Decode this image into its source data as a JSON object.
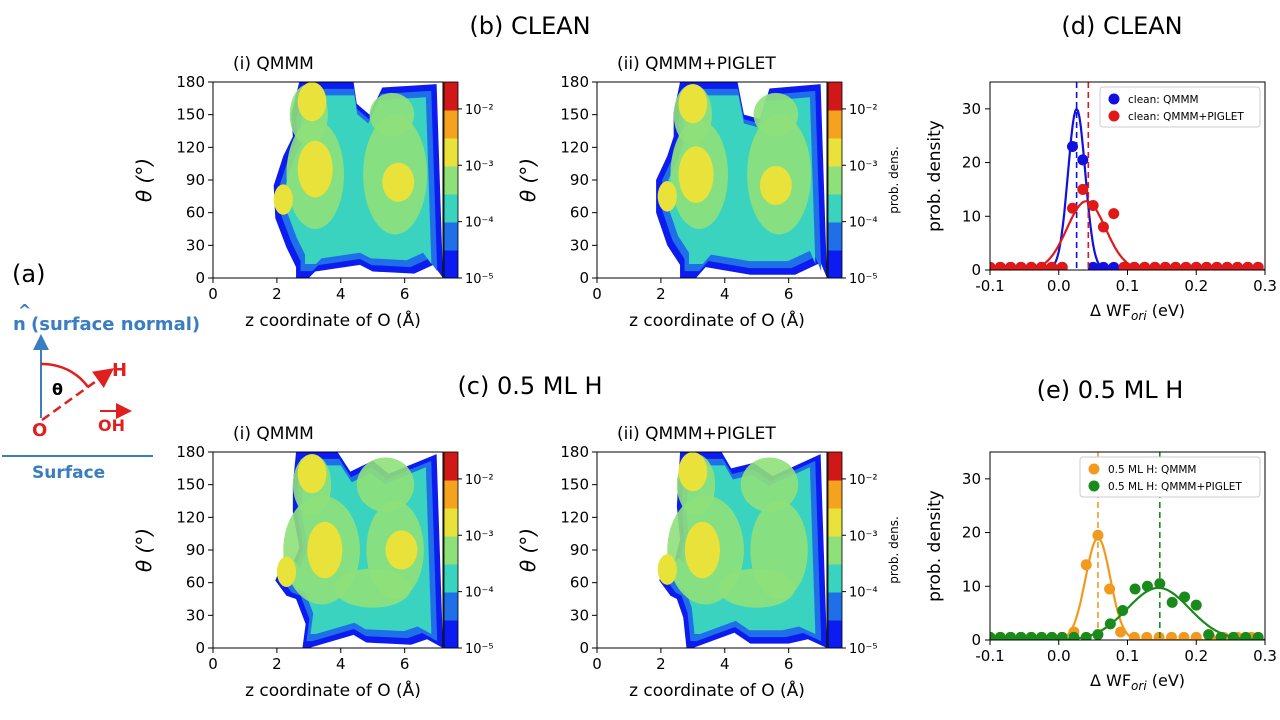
{
  "panel_labels": {
    "a": "(a)",
    "b": "(b) CLEAN",
    "c": "(c) 0.5 ML H",
    "d": "(d) CLEAN",
    "e": "(e) 0.5 ML H"
  },
  "schematic": {
    "normal_hat": "^",
    "normal_n": "n",
    "normal_label": "(surface normal)",
    "theta": "θ",
    "h": "H",
    "o": "O",
    "oh": "OH",
    "surface": "Surface"
  },
  "colors": {
    "clean_qmmm": "#1010e0",
    "clean_piglet": "#e01818",
    "h_qmmm": "#f29a1f",
    "h_piglet": "#1a8a1a",
    "schematic_blue": "#3a7dc0",
    "schematic_red": "#e02020",
    "colorbar": [
      "#0c1cf0",
      "#1f6fe8",
      "#39d3c0",
      "#8fe07a",
      "#e8e23a",
      "#f5a31f",
      "#d01818"
    ]
  },
  "chart_data": [
    {
      "type": "heatmap",
      "id": "b-i",
      "title": "(i) QMMM",
      "xlabel": "z coordinate of O (Å)",
      "ylabel": "θ (°)",
      "xlim": [
        0,
        7.2
      ],
      "ylim": [
        0,
        180
      ],
      "xticks": [
        "0",
        "2",
        "4",
        "6"
      ],
      "yticks": [
        "0",
        "30",
        "60",
        "90",
        "120",
        "150",
        "180"
      ],
      "colorbar": {
        "scale": "log",
        "range": [
          1e-05,
          0.03
        ],
        "ticks": [
          "10⁻⁵",
          "10⁻⁴",
          "10⁻³",
          "10⁻²"
        ],
        "label": ""
      },
      "hotspots": [
        {
          "x": 3.1,
          "y": 162,
          "level": "10⁻³"
        },
        {
          "x": 3.2,
          "y": 100,
          "level": "10⁻³"
        },
        {
          "x": 2.2,
          "y": 72,
          "level": "10⁻³"
        },
        {
          "x": 5.8,
          "y": 88,
          "level": "10⁻³"
        }
      ]
    },
    {
      "type": "heatmap",
      "id": "b-ii",
      "title": "(ii) QMMM+PIGLET",
      "xlabel": "z coordinate of O (Å)",
      "ylabel": "θ (°)",
      "xlim": [
        0,
        7.2
      ],
      "ylim": [
        0,
        180
      ],
      "xticks": [
        "0",
        "2",
        "4",
        "6"
      ],
      "yticks": [
        "0",
        "30",
        "60",
        "90",
        "120",
        "150",
        "180"
      ],
      "colorbar": {
        "scale": "log",
        "range": [
          1e-05,
          0.03
        ],
        "ticks": [
          "10⁻⁵",
          "10⁻⁴",
          "10⁻³",
          "10⁻²"
        ],
        "label": "prob. dens."
      },
      "hotspots": [
        {
          "x": 3.0,
          "y": 160,
          "level": "10⁻³"
        },
        {
          "x": 3.1,
          "y": 95,
          "level": "10⁻³"
        },
        {
          "x": 2.2,
          "y": 75,
          "level": "10⁻³"
        },
        {
          "x": 5.6,
          "y": 85,
          "level": "10⁻³"
        }
      ]
    },
    {
      "type": "heatmap",
      "id": "c-i",
      "title": "(i) QMMM",
      "xlabel": "z coordinate of O (Å)",
      "ylabel": "θ (°)",
      "xlim": [
        0,
        7.2
      ],
      "ylim": [
        0,
        180
      ],
      "xticks": [
        "0",
        "2",
        "4",
        "6"
      ],
      "yticks": [
        "0",
        "30",
        "60",
        "90",
        "120",
        "150",
        "180"
      ],
      "colorbar": {
        "scale": "log",
        "range": [
          1e-05,
          0.03
        ],
        "ticks": [
          "10⁻⁵",
          "10⁻⁴",
          "10⁻³",
          "10⁻²"
        ],
        "label": ""
      },
      "hotspots": [
        {
          "x": 3.1,
          "y": 160,
          "level": "10⁻³"
        },
        {
          "x": 3.5,
          "y": 90,
          "level": "10⁻³"
        },
        {
          "x": 2.3,
          "y": 70,
          "level": "10⁻³"
        },
        {
          "x": 5.9,
          "y": 90,
          "level": "10⁻³"
        }
      ]
    },
    {
      "type": "heatmap",
      "id": "c-ii",
      "title": "(ii) QMMM+PIGLET",
      "xlabel": "z coordinate of O (Å)",
      "ylabel": "θ (°)",
      "xlim": [
        0,
        7.2
      ],
      "ylim": [
        0,
        180
      ],
      "xticks": [
        "0",
        "2",
        "4",
        "6"
      ],
      "yticks": [
        "0",
        "30",
        "60",
        "90",
        "120",
        "150",
        "180"
      ],
      "colorbar": {
        "scale": "log",
        "range": [
          1e-05,
          0.03
        ],
        "ticks": [
          "10⁻⁵",
          "10⁻⁴",
          "10⁻³",
          "10⁻²"
        ],
        "label": "prob. dens."
      },
      "hotspots": [
        {
          "x": 3.0,
          "y": 162,
          "level": "10⁻³"
        },
        {
          "x": 3.3,
          "y": 90,
          "level": "10⁻³"
        },
        {
          "x": 2.2,
          "y": 72,
          "level": "10⁻³"
        }
      ]
    },
    {
      "type": "scatter",
      "id": "d",
      "xlabel": "Δ WF",
      "xlabel_sub": "ori",
      "xlabel_unit": " (eV)",
      "ylabel": "prob. density",
      "xlim": [
        -0.1,
        0.3
      ],
      "ylim": [
        0,
        35
      ],
      "xticks": [
        "-0.1",
        "0.0",
        "0.1",
        "0.2",
        "0.3"
      ],
      "yticks": [
        "0",
        "10",
        "20",
        "30"
      ],
      "legend": "top-right",
      "series": [
        {
          "name": "clean: QMMM",
          "color": "#1010e0",
          "mean": 0.026,
          "points": [
            [
              -0.1,
              0.5
            ],
            [
              -0.085,
              0.5
            ],
            [
              -0.07,
              0.5
            ],
            [
              -0.055,
              0.5
            ],
            [
              -0.04,
              0.5
            ],
            [
              -0.025,
              0.5
            ],
            [
              -0.01,
              0.5
            ],
            [
              0.005,
              0.5
            ],
            [
              0.02,
              23
            ],
            [
              0.035,
              20.5
            ],
            [
              0.05,
              0.5
            ],
            [
              0.065,
              0.5
            ],
            [
              0.08,
              0.5
            ],
            [
              0.095,
              0.5
            ],
            [
              0.11,
              0.5
            ],
            [
              0.125,
              0.5
            ],
            [
              0.14,
              0.5
            ],
            [
              0.155,
              0.5
            ],
            [
              0.17,
              0.5
            ],
            [
              0.185,
              0.5
            ],
            [
              0.2,
              0.5
            ],
            [
              0.215,
              0.5
            ],
            [
              0.23,
              0.5
            ],
            [
              0.245,
              0.5
            ],
            [
              0.26,
              0.5
            ],
            [
              0.275,
              0.5
            ],
            [
              0.29,
              0.5
            ]
          ],
          "fit": {
            "mu": 0.026,
            "sigma": 0.0125,
            "amp": 30
          }
        },
        {
          "name": "clean: QMMM+PIGLET",
          "color": "#e01818",
          "mean": 0.043,
          "points": [
            [
              -0.1,
              0.5
            ],
            [
              -0.085,
              0.5
            ],
            [
              -0.07,
              0.5
            ],
            [
              -0.055,
              0.5
            ],
            [
              -0.04,
              0.5
            ],
            [
              -0.025,
              0.5
            ],
            [
              -0.01,
              0.5
            ],
            [
              0.005,
              0.5
            ],
            [
              0.02,
              11.5
            ],
            [
              0.035,
              15
            ],
            [
              0.05,
              12
            ],
            [
              0.065,
              8
            ],
            [
              0.08,
              10.5
            ],
            [
              0.095,
              0.5
            ],
            [
              0.11,
              0.5
            ],
            [
              0.125,
              0.5
            ],
            [
              0.14,
              0.5
            ],
            [
              0.155,
              0.5
            ],
            [
              0.17,
              0.5
            ],
            [
              0.185,
              0.5
            ],
            [
              0.2,
              0.5
            ],
            [
              0.215,
              0.5
            ],
            [
              0.23,
              0.5
            ],
            [
              0.245,
              0.5
            ],
            [
              0.26,
              0.5
            ],
            [
              0.275,
              0.5
            ],
            [
              0.29,
              0.5
            ]
          ],
          "fit": {
            "mu": 0.04,
            "sigma": 0.028,
            "amp": 12.8
          }
        }
      ]
    },
    {
      "type": "scatter",
      "id": "e",
      "xlabel": "Δ WF",
      "xlabel_sub": "ori",
      "xlabel_unit": " (eV)",
      "ylabel": "prob. density",
      "xlim": [
        -0.1,
        0.3
      ],
      "ylim": [
        0,
        35
      ],
      "xticks": [
        "-0.1",
        "0.0",
        "0.1",
        "0.2",
        "0.3"
      ],
      "yticks": [
        "0",
        "10",
        "20",
        "30"
      ],
      "legend": "top-right",
      "series": [
        {
          "name": "0.5 ML H: QMMM",
          "color": "#f29a1f",
          "mean": 0.057,
          "points": [
            [
              -0.1,
              0.5
            ],
            [
              -0.085,
              0.5
            ],
            [
              -0.07,
              0.5
            ],
            [
              -0.055,
              0.5
            ],
            [
              -0.04,
              0.5
            ],
            [
              -0.025,
              0.5
            ],
            [
              -0.01,
              0.5
            ],
            [
              0.005,
              0.5
            ],
            [
              0.022,
              1.5
            ],
            [
              0.04,
              14
            ],
            [
              0.057,
              19.5
            ],
            [
              0.074,
              9.5
            ],
            [
              0.09,
              1.5
            ],
            [
              0.11,
              0.5
            ],
            [
              0.128,
              0.5
            ],
            [
              0.146,
              0.5
            ],
            [
              0.164,
              0.5
            ],
            [
              0.182,
              0.5
            ],
            [
              0.2,
              0.5
            ],
            [
              0.22,
              0.5
            ],
            [
              0.24,
              0.5
            ],
            [
              0.26,
              0.5
            ],
            [
              0.28,
              0.5
            ]
          ],
          "fit": {
            "mu": 0.057,
            "sigma": 0.018,
            "amp": 19
          }
        },
        {
          "name": "0.5 ML H: QMMM+PIGLET",
          "color": "#1a8a1a",
          "mean": 0.147,
          "points": [
            [
              -0.1,
              0.5
            ],
            [
              -0.085,
              0.5
            ],
            [
              -0.07,
              0.5
            ],
            [
              -0.055,
              0.5
            ],
            [
              -0.04,
              0.5
            ],
            [
              -0.025,
              0.5
            ],
            [
              -0.01,
              0.5
            ],
            [
              0.005,
              0.5
            ],
            [
              0.022,
              0.5
            ],
            [
              0.04,
              0.5
            ],
            [
              0.057,
              1
            ],
            [
              0.075,
              3
            ],
            [
              0.093,
              5.5
            ],
            [
              0.111,
              9.5
            ],
            [
              0.129,
              10
            ],
            [
              0.147,
              10.5
            ],
            [
              0.165,
              7
            ],
            [
              0.183,
              8
            ],
            [
              0.2,
              6.5
            ],
            [
              0.218,
              1
            ],
            [
              0.236,
              0.5
            ],
            [
              0.254,
              0.5
            ],
            [
              0.272,
              0.5
            ],
            [
              0.29,
              0.5
            ]
          ],
          "fit": {
            "mu": 0.145,
            "sigma": 0.045,
            "amp": 9.7
          }
        }
      ]
    }
  ]
}
